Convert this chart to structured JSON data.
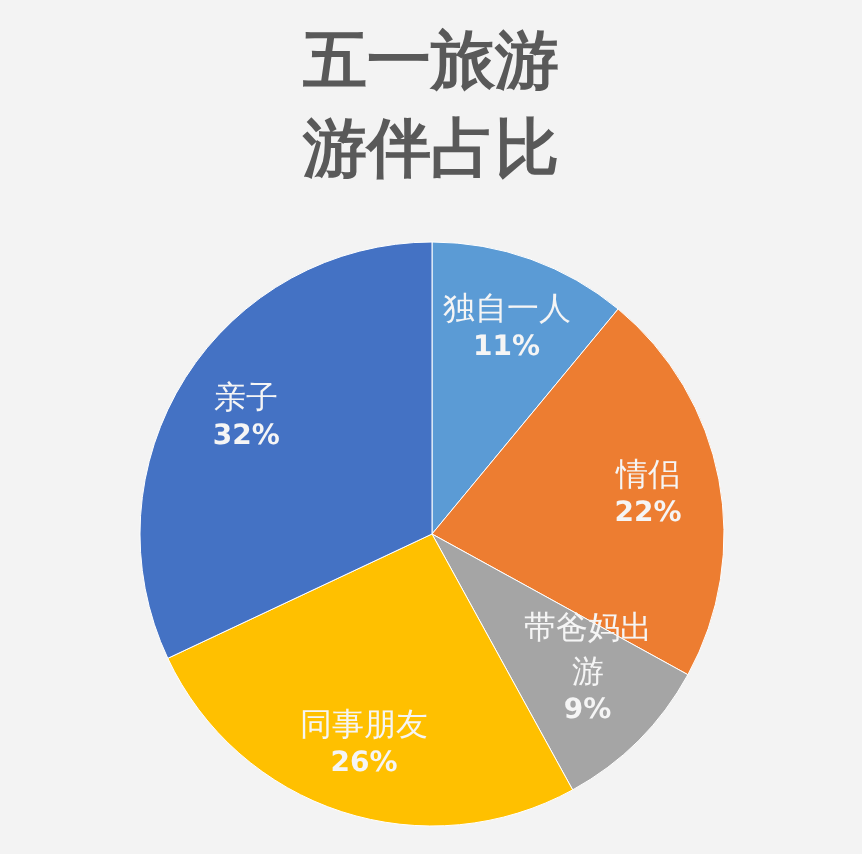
{
  "chart_data": {
    "type": "pie",
    "title": "五一旅游游伴占比",
    "categories": [
      "独自一人",
      "情侣",
      "带爸妈出游",
      "同事朋友",
      "亲子"
    ],
    "values": [
      11,
      22,
      9,
      26,
      32
    ],
    "colors": [
      "#5b9bd5",
      "#ed7d31",
      "#a5a5a5",
      "#ffc000",
      "#4472c4"
    ],
    "value_labels": [
      "11%",
      "22%",
      "9%",
      "26%",
      "32%"
    ]
  }
}
